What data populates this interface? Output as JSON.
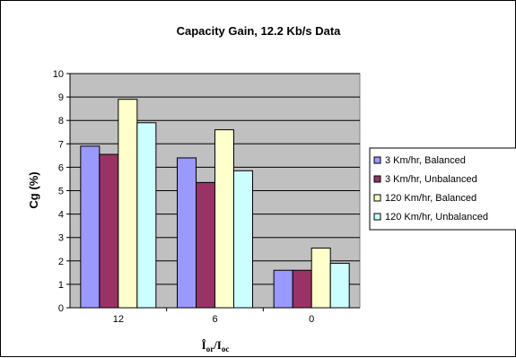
{
  "chart_data": {
    "type": "bar",
    "title": "Capacity Gain, 12.2 Kb/s Data",
    "ylabel": "Cg (%)",
    "xlabel": {
      "main": "Î",
      "sub1": "or",
      "slash": "/I",
      "sub2": "oc"
    },
    "categories": [
      "12",
      "6",
      "0"
    ],
    "ylim": [
      0,
      10
    ],
    "yticks": [
      "0",
      "1",
      "2",
      "3",
      "4",
      "5",
      "6",
      "7",
      "8",
      "9",
      "10"
    ],
    "grid": true,
    "legend_position": "right",
    "plot_background": "#c0c0c0",
    "series": [
      {
        "name": "3 Km/hr, Balanced",
        "color": "#9999ff",
        "values": [
          6.9,
          6.4,
          1.6
        ]
      },
      {
        "name": "3 Km/hr, Unbalanced",
        "color": "#993366",
        "values": [
          6.55,
          5.35,
          1.6
        ]
      },
      {
        "name": "120 Km/hr, Balanced",
        "color": "#ffffcc",
        "values": [
          8.9,
          7.6,
          2.55
        ]
      },
      {
        "name": "120 Km/hr, Unbalanced",
        "color": "#ccffff",
        "values": [
          7.9,
          5.85,
          1.9
        ]
      }
    ]
  }
}
